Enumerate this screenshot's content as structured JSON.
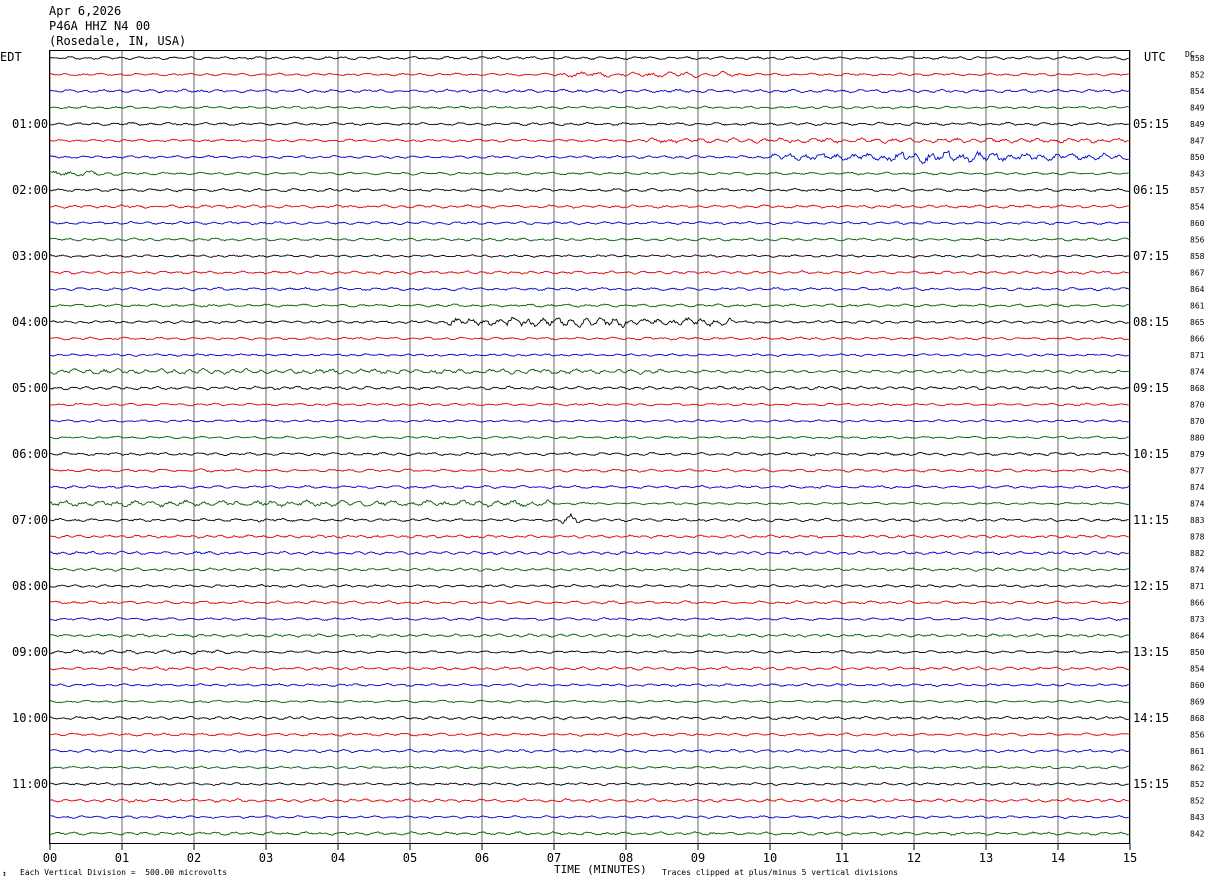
{
  "header": {
    "date": "Apr 6,2026",
    "station": "P46A HHZ N4 00",
    "location": "(Rosedale, IN, USA)"
  },
  "left_zone": "EDT",
  "right_zone": "UTC",
  "dc_label": "DC",
  "footer": {
    "scale_note": "Each Vertical Division =  500.00 microvolts",
    "clip_note": "Traces clipped at plus/minus 5 vertical divisions",
    "mark": "↕"
  },
  "chart_data": {
    "type": "line",
    "title": "",
    "xlabel": "TIME (MINUTES)",
    "xlim": [
      0,
      15
    ],
    "x_ticks": [
      "00",
      "01",
      "02",
      "03",
      "04",
      "05",
      "06",
      "07",
      "08",
      "09",
      "10",
      "11",
      "12",
      "13",
      "14",
      "15"
    ],
    "rows_per_hour": 4,
    "row_minutes": 15,
    "colors": [
      "#000000",
      "#e00000",
      "#0000d0",
      "#006000"
    ],
    "left_hour_labels": [
      "01:00",
      "02:00",
      "03:00",
      "04:00",
      "05:00",
      "06:00",
      "07:00",
      "08:00",
      "09:00",
      "10:00",
      "11:00"
    ],
    "right_hour_labels": [
      "05:15",
      "06:15",
      "07:15",
      "08:15",
      "09:15",
      "10:15",
      "11:15",
      "12:15",
      "13:15",
      "14:15",
      "15:15"
    ],
    "dc_offsets": [
      858,
      852,
      854,
      849,
      849,
      847,
      850,
      843,
      857,
      854,
      860,
      856,
      858,
      867,
      864,
      861,
      865,
      866,
      871,
      874,
      868,
      870,
      870,
      880,
      879,
      877,
      874,
      874,
      883,
      878,
      882,
      874,
      871,
      866,
      873,
      864,
      850,
      854,
      860,
      869,
      868,
      856,
      861,
      862,
      852,
      852,
      843,
      842
    ],
    "events": [
      {
        "row": 1,
        "start_min": 7.0,
        "end_min": 9.6,
        "amp": 2.2
      },
      {
        "row": 5,
        "start_min": 8.2,
        "end_min": 15.0,
        "amp": 2.0
      },
      {
        "row": 6,
        "start_min": 10.0,
        "end_min": 15.0,
        "amp": 3.0
      },
      {
        "row": 6,
        "start_min": 11.6,
        "end_min": 13.2,
        "amp": 5.0
      },
      {
        "row": 7,
        "start_min": 0.0,
        "end_min": 1.0,
        "amp": 2.2
      },
      {
        "row": 16,
        "start_min": 5.5,
        "end_min": 9.5,
        "amp": 3.2
      },
      {
        "row": 16,
        "start_min": 6.3,
        "end_min": 8.0,
        "amp": 4.2
      },
      {
        "row": 19,
        "start_min": 0.0,
        "end_min": 8.5,
        "amp": 2.2
      },
      {
        "row": 27,
        "start_min": 0.0,
        "end_min": 7.0,
        "amp": 2.6
      },
      {
        "row": 28,
        "start_min": 7.05,
        "end_min": 7.35,
        "amp": 4.5
      },
      {
        "row": 36,
        "start_min": 0.0,
        "end_min": 2.5,
        "amp": 1.8
      }
    ]
  }
}
